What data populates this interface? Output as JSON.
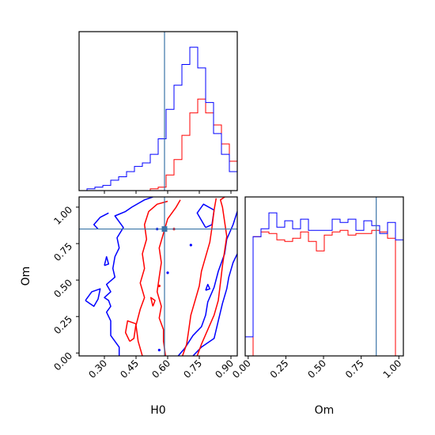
{
  "chart_data": [
    {
      "type": "histogram",
      "panel": "H0 marginal",
      "xlim": [
        0.18,
        0.93
      ],
      "bin_edges": [
        0.18,
        0.2175,
        0.255,
        0.2925,
        0.33,
        0.3675,
        0.405,
        0.4425,
        0.48,
        0.5175,
        0.555,
        0.5925,
        0.63,
        0.6675,
        0.705,
        0.7425,
        0.78,
        0.8175,
        0.855,
        0.8925,
        0.93
      ],
      "truth": 0.585,
      "series": [
        {
          "color": "#ff0000",
          "values": [
            0,
            0,
            0,
            0,
            0,
            0,
            0,
            0,
            0,
            0.01,
            0.02,
            0.09,
            0.18,
            0.32,
            0.45,
            0.53,
            0.45,
            0.38,
            0.27,
            0.17,
            0.06
          ]
        },
        {
          "color": "#0000ff",
          "values": [
            0,
            0.01,
            0.02,
            0.03,
            0.06,
            0.08,
            0.11,
            0.14,
            0.16,
            0.21,
            0.3,
            0.47,
            0.61,
            0.73,
            0.83,
            0.71,
            0.51,
            0.33,
            0.21,
            0.11,
            0.05
          ]
        }
      ],
      "ylim": [
        0,
        0.92
      ],
      "x_ticks": [
        "0.30",
        "0.45",
        "0.60",
        "0.75",
        "0.90"
      ],
      "xlabel": ""
    },
    {
      "type": "histogram",
      "panel": "Om marginal",
      "xlim": [
        -0.02,
        1.03
      ],
      "bin_edges": [
        -0.02,
        0.0325,
        0.085,
        0.1375,
        0.19,
        0.2425,
        0.295,
        0.3475,
        0.4,
        0.4525,
        0.505,
        0.5575,
        0.61,
        0.6625,
        0.715,
        0.7675,
        0.82,
        0.8725,
        0.925,
        0.9775,
        1.03
      ],
      "truth": 0.85,
      "series": [
        {
          "color": "#ff0000",
          "values": [
            0,
            0.75,
            0.78,
            0.77,
            0.73,
            0.72,
            0.74,
            0.78,
            0.72,
            0.66,
            0.76,
            0.78,
            0.79,
            0.76,
            0.77,
            0.77,
            0.79,
            0.78,
            0.74,
            0,
            0
          ]
        },
        {
          "color": "#0000ff",
          "values": [
            0.12,
            0.75,
            0.8,
            0.9,
            0.81,
            0.85,
            0.8,
            0.86,
            0.79,
            0.79,
            0.79,
            0.86,
            0.84,
            0.86,
            0.79,
            0.85,
            0.82,
            0.77,
            0.84,
            0.73,
            0.25
          ]
        }
      ],
      "ylim": [
        0,
        1.0
      ],
      "x_ticks": [
        "0.00",
        "0.25",
        "0.50",
        "0.75",
        "1.00"
      ],
      "xlabel": "Om"
    },
    {
      "type": "contour",
      "panel": "H0 vs Om joint",
      "xlim": [
        0.18,
        0.93
      ],
      "ylim": [
        -0.02,
        1.07
      ],
      "truth": {
        "x": 0.585,
        "y": 0.85
      },
      "truth_marker": {
        "x": 0.585,
        "y": 0.85
      },
      "series": [
        {
          "color": "#0000ff",
          "name": "",
          "paths": [
            [
              [
                0.37,
                -0.02
              ],
              [
                0.37,
                0.04
              ],
              [
                0.33,
                0.12
              ],
              [
                0.33,
                0.22
              ],
              [
                0.31,
                0.28
              ],
              [
                0.33,
                0.32
              ],
              [
                0.32,
                0.36
              ],
              [
                0.3,
                0.38
              ],
              [
                0.33,
                0.42
              ],
              [
                0.31,
                0.47
              ],
              [
                0.35,
                0.52
              ],
              [
                0.34,
                0.58
              ],
              [
                0.35,
                0.66
              ],
              [
                0.37,
                0.72
              ],
              [
                0.36,
                0.79
              ],
              [
                0.39,
                0.86
              ],
              [
                0.35,
                0.94
              ],
              [
                0.4,
                0.97
              ],
              [
                0.43,
                1.0
              ],
              [
                0.49,
                1.05
              ],
              [
                0.53,
                1.07
              ]
            ],
            [
              [
                0.65,
                -0.02
              ],
              [
                0.68,
                0.03
              ],
              [
                0.72,
                0.12
              ],
              [
                0.76,
                0.18
              ],
              [
                0.78,
                0.26
              ],
              [
                0.79,
                0.35
              ],
              [
                0.82,
                0.45
              ],
              [
                0.84,
                0.56
              ],
              [
                0.87,
                0.68
              ],
              [
                0.88,
                0.78
              ],
              [
                0.91,
                0.88
              ],
              [
                0.93,
                0.97
              ]
            ],
            [
              [
                0.72,
                -0.02
              ],
              [
                0.76,
                0.04
              ],
              [
                0.82,
                0.1
              ],
              [
                0.84,
                0.22
              ],
              [
                0.86,
                0.34
              ],
              [
                0.88,
                0.44
              ],
              [
                0.89,
                0.52
              ],
              [
                0.91,
                0.62
              ],
              [
                0.93,
                0.68
              ]
            ],
            [
              [
                0.27,
                0.85
              ],
              [
                0.25,
                0.88
              ],
              [
                0.28,
                0.93
              ],
              [
                0.32,
                0.96
              ]
            ],
            [
              [
                0.21,
                0.36
              ],
              [
                0.24,
                0.42
              ],
              [
                0.28,
                0.44
              ],
              [
                0.27,
                0.37
              ],
              [
                0.25,
                0.32
              ],
              [
                0.23,
                0.34
              ],
              [
                0.21,
                0.36
              ]
            ],
            [
              [
                0.3,
                0.6
              ],
              [
                0.31,
                0.66
              ],
              [
                0.32,
                0.61
              ],
              [
                0.3,
                0.6
              ]
            ],
            [
              [
                0.78,
                0.86
              ],
              [
                0.81,
                0.88
              ],
              [
                0.82,
                0.98
              ],
              [
                0.77,
                1.02
              ],
              [
                0.74,
                0.96
              ],
              [
                0.78,
                0.86
              ]
            ],
            [
              [
                0.78,
                0.43
              ],
              [
                0.79,
                0.47
              ],
              [
                0.8,
                0.44
              ],
              [
                0.78,
                0.43
              ]
            ]
          ]
        },
        {
          "color": "#ff0000",
          "name": "",
          "paths": [
            [
              [
                0.48,
                -0.02
              ],
              [
                0.46,
                0.08
              ],
              [
                0.45,
                0.19
              ],
              [
                0.47,
                0.3
              ],
              [
                0.49,
                0.38
              ],
              [
                0.47,
                0.48
              ],
              [
                0.49,
                0.58
              ],
              [
                0.48,
                0.68
              ],
              [
                0.5,
                0.78
              ],
              [
                0.49,
                0.88
              ],
              [
                0.51,
                0.97
              ],
              [
                0.55,
                1.02
              ],
              [
                0.6,
                1.04
              ]
            ],
            [
              [
                0.74,
                -0.02
              ],
              [
                0.76,
                0.06
              ],
              [
                0.79,
                0.16
              ],
              [
                0.82,
                0.26
              ],
              [
                0.84,
                0.36
              ],
              [
                0.85,
                0.48
              ],
              [
                0.86,
                0.6
              ],
              [
                0.87,
                0.7
              ],
              [
                0.88,
                0.8
              ],
              [
                0.87,
                0.9
              ],
              [
                0.86,
                1.0
              ],
              [
                0.85,
                1.05
              ],
              [
                0.88,
                1.08
              ]
            ],
            [
              [
                0.59,
                -0.02
              ],
              [
                0.58,
                0.08
              ],
              [
                0.58,
                0.16
              ],
              [
                0.56,
                0.24
              ],
              [
                0.57,
                0.32
              ],
              [
                0.55,
                0.42
              ],
              [
                0.56,
                0.52
              ],
              [
                0.57,
                0.62
              ],
              [
                0.56,
                0.72
              ],
              [
                0.58,
                0.82
              ],
              [
                0.6,
                0.92
              ],
              [
                0.64,
                1.0
              ],
              [
                0.66,
                1.05
              ]
            ],
            [
              [
                0.67,
                -0.02
              ],
              [
                0.69,
                0.06
              ],
              [
                0.7,
                0.16
              ],
              [
                0.71,
                0.26
              ],
              [
                0.73,
                0.36
              ],
              [
                0.75,
                0.46
              ],
              [
                0.76,
                0.56
              ],
              [
                0.78,
                0.66
              ],
              [
                0.8,
                0.76
              ],
              [
                0.81,
                0.86
              ],
              [
                0.82,
                0.98
              ],
              [
                0.83,
                1.06
              ]
            ],
            [
              [
                0.42,
                0.08
              ],
              [
                0.4,
                0.14
              ],
              [
                0.41,
                0.22
              ],
              [
                0.45,
                0.2
              ],
              [
                0.44,
                0.1
              ],
              [
                0.42,
                0.08
              ]
            ],
            [
              [
                0.53,
                0.32
              ],
              [
                0.52,
                0.38
              ],
              [
                0.54,
                0.36
              ],
              [
                0.53,
                0.32
              ]
            ]
          ]
        }
      ],
      "x_ticks": [
        "0.30",
        "0.45",
        "0.60",
        "0.75",
        "0.90"
      ],
      "y_ticks": [
        "0.00",
        "0.25",
        "0.50",
        "0.75",
        "1.00"
      ],
      "xlabel": "H0",
      "ylabel": "Om"
    }
  ]
}
